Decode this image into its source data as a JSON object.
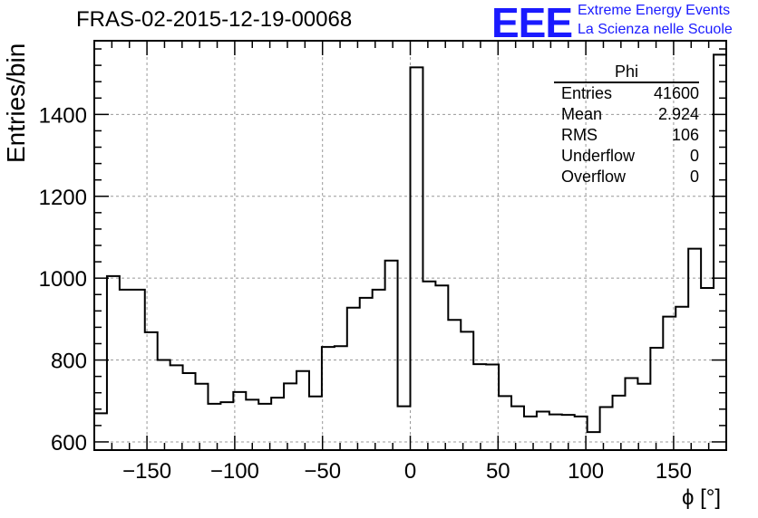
{
  "title": "FRAS-02-2015-12-19-00068",
  "logo": {
    "mark": "EEE",
    "line1": "Extreme Energy Events",
    "line2": "La Scienza nelle Scuole",
    "color": "#1a1aff"
  },
  "stats": {
    "title": "Phi",
    "rows": [
      {
        "label": "Entries",
        "value": "41600"
      },
      {
        "label": "Mean",
        "value": "2.924"
      },
      {
        "label": "RMS",
        "value": "106"
      },
      {
        "label": "Underflow",
        "value": "0"
      },
      {
        "label": "Overflow",
        "value": "0"
      }
    ]
  },
  "chart_data": {
    "type": "bar",
    "style": "step-histogram",
    "xlabel": "ϕ [°]",
    "ylabel": "Entries/bin",
    "xlim": [
      -180,
      180
    ],
    "ylim": [
      580,
      1580
    ],
    "grid": true,
    "bin_width": 7.2,
    "x_ticks": [
      -150,
      -100,
      -50,
      0,
      50,
      100,
      150
    ],
    "x_tick_labels": [
      "−150",
      "−100",
      "−50",
      "0",
      "50",
      "100",
      "150"
    ],
    "y_ticks": [
      600,
      800,
      1000,
      1200,
      1400
    ],
    "y_tick_labels": [
      "600",
      "800",
      "1000",
      "1200",
      "1400"
    ],
    "values": [
      670,
      1005,
      972,
      972,
      868,
      800,
      787,
      768,
      742,
      693,
      697,
      722,
      703,
      693,
      708,
      743,
      773,
      711,
      832,
      834,
      928,
      952,
      972,
      1043,
      687,
      1515,
      992,
      982,
      898,
      869,
      790,
      789,
      712,
      687,
      662,
      674,
      667,
      666,
      662,
      624,
      685,
      713,
      756,
      742,
      830,
      906,
      930,
      1072,
      976,
      1546
    ]
  }
}
